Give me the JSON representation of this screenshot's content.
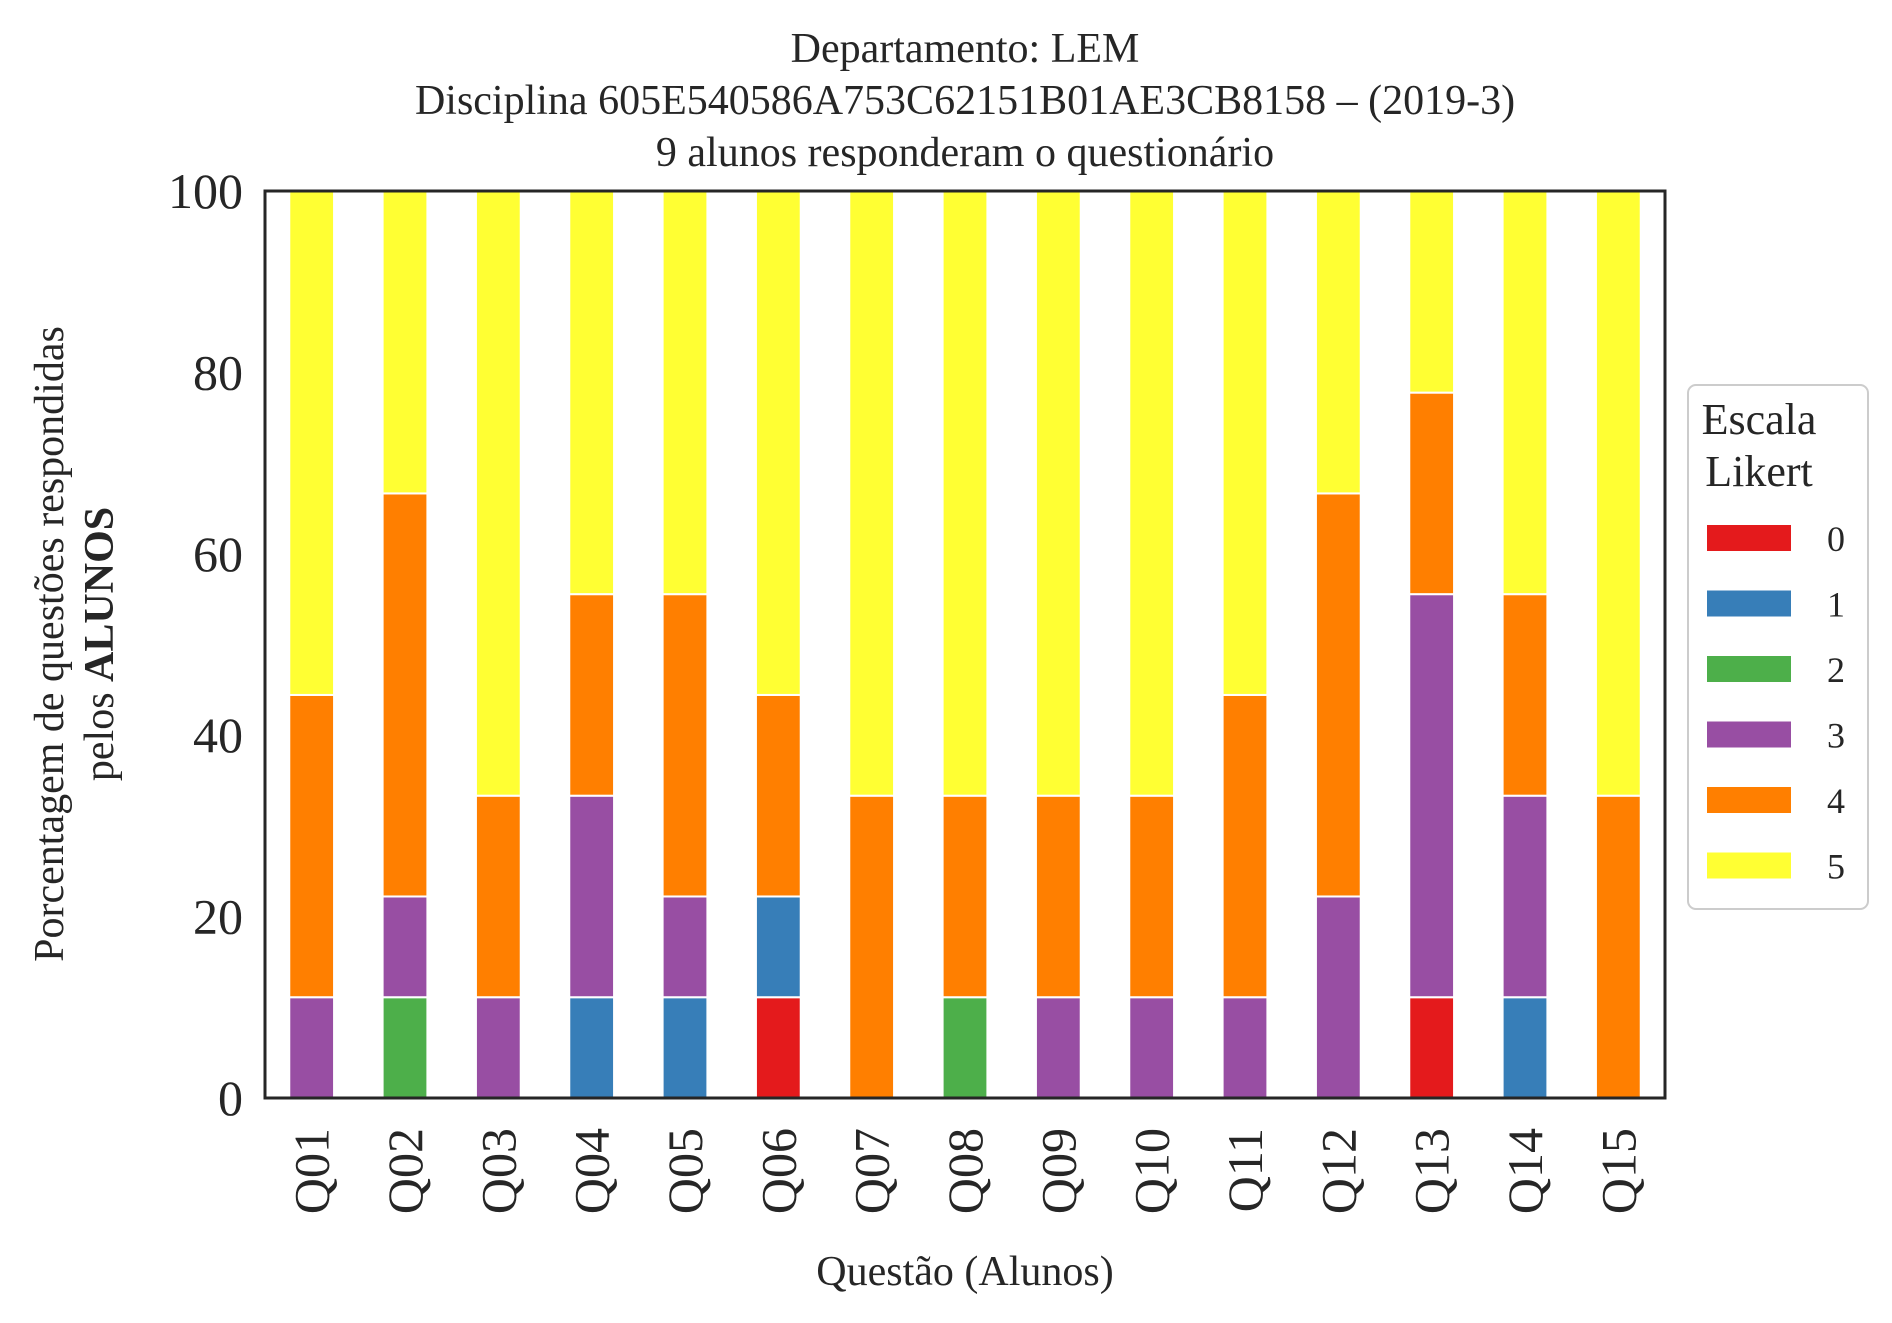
{
  "chart_data": {
    "type": "bar",
    "stacked": true,
    "title_lines": [
      "Departamento: LEM",
      "Disciplina 605E540586A753C62151B01AE3CB8158 – (2019-3)",
      "9 alunos responderam o questionário"
    ],
    "xlabel": "Questão (Alunos)",
    "ylabel_line1": "Porcentagem de questões respondidas",
    "ylabel_line2_prefix": "pelos ",
    "ylabel_line2_bold": "ALUNOS",
    "ylim": [
      0,
      100
    ],
    "yticks": [
      0,
      20,
      40,
      60,
      80,
      100
    ],
    "grid": false,
    "categories": [
      "Q01",
      "Q02",
      "Q03",
      "Q04",
      "Q05",
      "Q06",
      "Q07",
      "Q08",
      "Q09",
      "Q10",
      "Q11",
      "Q12",
      "Q13",
      "Q14",
      "Q15"
    ],
    "legend": {
      "title_lines": [
        "Escala",
        "Likert"
      ],
      "placement": "right"
    },
    "series": [
      {
        "name": "0",
        "color": "#e41a1c",
        "values": [
          0,
          0,
          0,
          0,
          0,
          11.11,
          0,
          0,
          0,
          0,
          0,
          0,
          11.11,
          0,
          0
        ]
      },
      {
        "name": "1",
        "color": "#377eb8",
        "values": [
          0,
          0,
          0,
          11.11,
          11.11,
          11.11,
          0,
          0,
          0,
          0,
          0,
          0,
          0,
          11.11,
          0
        ]
      },
      {
        "name": "2",
        "color": "#4daf4a",
        "values": [
          0,
          11.11,
          0,
          0,
          0,
          0,
          0,
          11.11,
          0,
          0,
          0,
          0,
          0,
          0,
          0
        ]
      },
      {
        "name": "3",
        "color": "#984ea3",
        "values": [
          11.11,
          11.11,
          11.11,
          22.22,
          11.11,
          0,
          0,
          0,
          11.11,
          11.11,
          11.11,
          22.22,
          44.44,
          22.22,
          0
        ]
      },
      {
        "name": "4",
        "color": "#ff7f00",
        "values": [
          33.33,
          44.44,
          22.22,
          22.22,
          33.33,
          22.22,
          33.33,
          22.22,
          22.22,
          22.22,
          33.33,
          44.44,
          22.22,
          22.22,
          33.33
        ]
      },
      {
        "name": "5",
        "color": "#ffff33",
        "values": [
          55.56,
          33.33,
          66.67,
          44.44,
          44.44,
          55.56,
          66.67,
          66.67,
          66.67,
          66.67,
          55.56,
          33.33,
          22.22,
          44.44,
          66.67
        ]
      }
    ]
  }
}
